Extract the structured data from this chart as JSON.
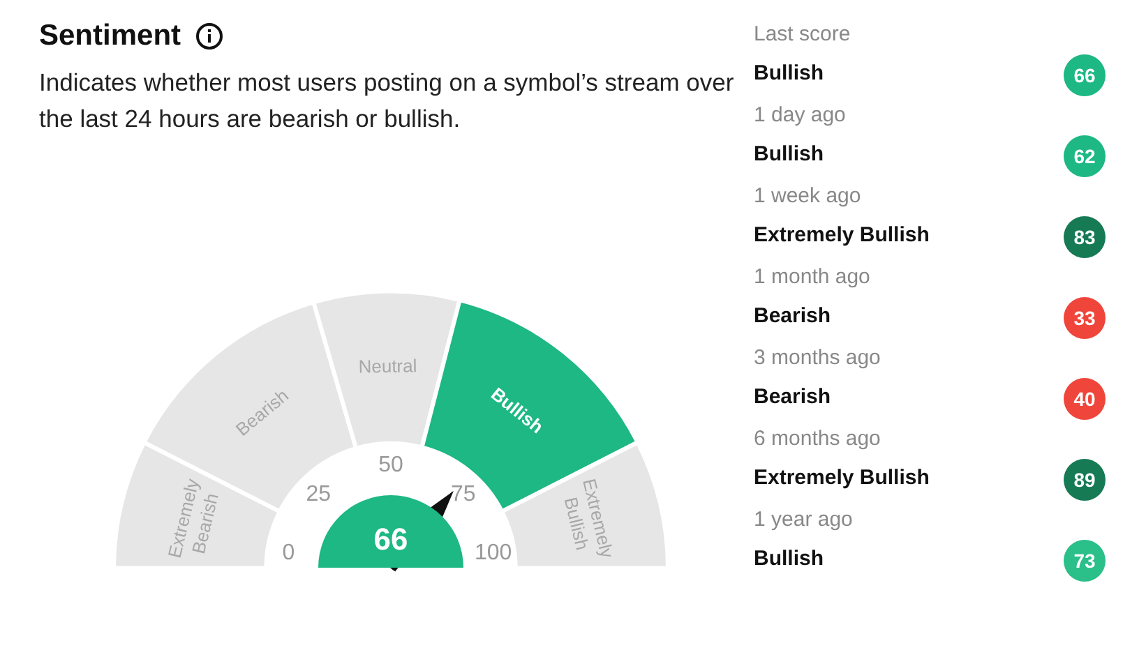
{
  "chart_data": [
    {
      "type": "donut",
      "title": "Sentiment",
      "subtitle": "Indicates whether most users posting on a symbol’s stream over the last 24 hours are bearish or bullish.",
      "categories": [
        "Extremely Bearish",
        "Bearish",
        "Neutral",
        "Bullish",
        "Extremely Bullish"
      ],
      "values": [
        15,
        26,
        17,
        27,
        15
      ],
      "colors": [
        "#e6e6e6",
        "#e6e6e6",
        "#e6e6e6",
        "#1db884",
        "#e6e6e6"
      ],
      "needle": "Bullish",
      "annotations": [
        "0",
        "25",
        "50",
        "75",
        "100",
        "66"
      ],
      "legend": false
    },
    {
      "type": "other",
      "annotations": [
        "Last score",
        "Bullish",
        "66",
        "1 day ago",
        "Bullish",
        "62",
        "1 week ago",
        "Extremely Bullish",
        "83",
        "1 month ago",
        "Bearish",
        "33",
        "3 months ago",
        "Bearish",
        "40",
        "6 months ago",
        "Extremely Bullish",
        "89",
        "1 year ago",
        "Bullish",
        "73"
      ],
      "colors": [
        "#1db884",
        "#1db884",
        "#167a55",
        "#f0453a",
        "#f0453a",
        "#167a55",
        "#2bbf8a"
      ]
    }
  ]
}
